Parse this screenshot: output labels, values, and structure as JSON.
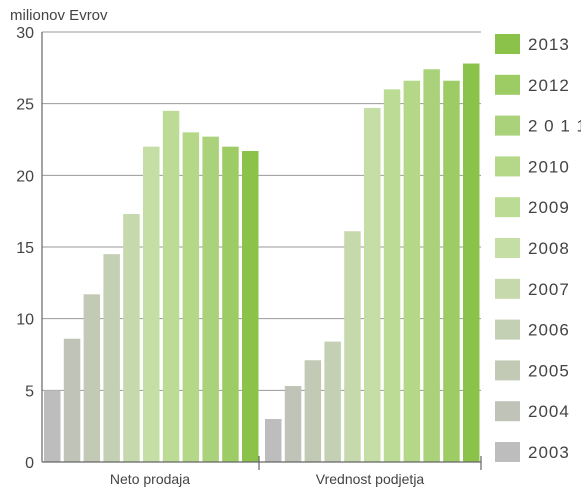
{
  "chart_data": {
    "type": "bar",
    "ylabel": "milionov Evrov",
    "ylim": [
      0,
      30
    ],
    "yticks": [
      "0",
      "5",
      "10",
      "15",
      "20",
      "25",
      "30"
    ],
    "grid": true,
    "legend_position": "right",
    "categories": [
      "Neto prodaja",
      "Vrednost podjetja"
    ],
    "series": [
      {
        "name": "2003",
        "color": "#bdbdbd",
        "values": [
          5.0,
          3.0
        ]
      },
      {
        "name": "2004",
        "color": "#c0c4b8",
        "values": [
          8.6,
          5.3
        ]
      },
      {
        "name": "2005",
        "color": "#c2cab6",
        "values": [
          11.7,
          7.1
        ]
      },
      {
        "name": "2006",
        "color": "#c4d0b4",
        "values": [
          14.5,
          8.4
        ]
      },
      {
        "name": "2007",
        "color": "#c6d9ad",
        "values": [
          17.3,
          16.1
        ]
      },
      {
        "name": "2008",
        "color": "#c4dea6",
        "values": [
          22.0,
          24.7
        ]
      },
      {
        "name": "2009",
        "color": "#bcdc95",
        "values": [
          24.5,
          26.0
        ]
      },
      {
        "name": "2010",
        "color": "#b4d888",
        "values": [
          23.0,
          26.6
        ]
      },
      {
        "name": "2 0 1 1",
        "color": "#a9d27a",
        "values": [
          22.7,
          27.4
        ]
      },
      {
        "name": "2012",
        "color": "#9dcc65",
        "values": [
          22.0,
          26.6
        ]
      },
      {
        "name": "2013",
        "color": "#8bc34a",
        "values": [
          21.7,
          27.8
        ]
      }
    ]
  }
}
